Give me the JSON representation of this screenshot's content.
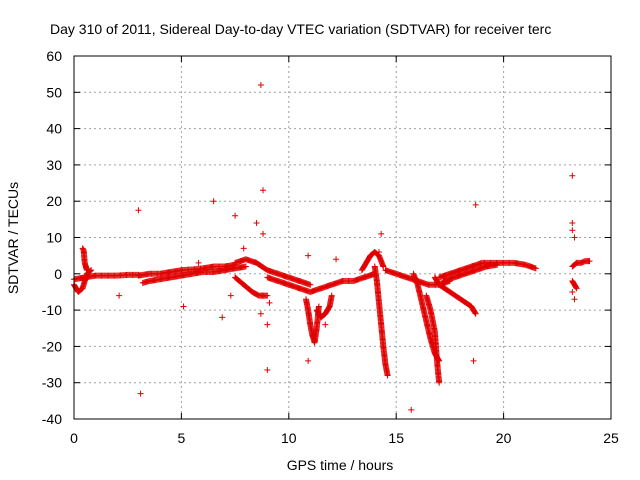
{
  "chart_data": {
    "type": "scatter",
    "title": "Day 310 of 2011, Sidereal Day-to-day VTEC variation (SDTVAR) for receiver terc",
    "xlabel": "GPS time / hours",
    "ylabel": "SDTVAR / TECUs",
    "xlim": [
      0,
      25
    ],
    "ylim": [
      -40,
      60
    ],
    "xticks": [
      0,
      5,
      10,
      15,
      20,
      25
    ],
    "yticks": [
      -40,
      -30,
      -20,
      -10,
      0,
      10,
      20,
      30,
      40,
      50,
      60
    ],
    "grid": true,
    "marker": "+",
    "color": "#e00000",
    "series": [
      {
        "name": "SDTVAR",
        "segments": [
          {
            "x": [
              0.0,
              0.5,
              1.0,
              1.5,
              2.0,
              2.5,
              3.0
            ],
            "y": [
              -1.5,
              -1.0,
              -0.5,
              -0.5,
              -0.5,
              -0.3,
              -0.3
            ]
          },
          {
            "x": [
              0.0,
              0.2,
              0.4,
              0.5,
              0.6,
              0.8
            ],
            "y": [
              -3,
              -5,
              -4,
              -2,
              0,
              1
            ]
          },
          {
            "x": [
              0.4,
              0.45,
              0.5,
              0.55,
              0.6
            ],
            "y": [
              7,
              6.5,
              3,
              2,
              1
            ]
          },
          {
            "x": [
              3.0,
              3.5,
              4.0,
              4.5,
              5.0,
              5.5,
              6.0,
              6.5,
              7.0,
              7.5
            ],
            "y": [
              -0.5,
              0.0,
              0.0,
              0.5,
              1.0,
              1.2,
              1.5,
              2.0,
              2.0,
              2.5
            ]
          },
          {
            "x": [
              3.2,
              3.5,
              4.0,
              4.5,
              5.0,
              5.5,
              6.0,
              6.5,
              7.0,
              7.5,
              8.0
            ],
            "y": [
              -2.5,
              -2.0,
              -1.5,
              -1.0,
              -0.5,
              0.0,
              0.5,
              0.5,
              1.0,
              1.5,
              2.0
            ]
          },
          {
            "x": [
              7.5,
              8.0,
              8.5,
              9.0,
              9.5,
              10.0,
              10.5,
              11.0
            ],
            "y": [
              3,
              4,
              3,
              1,
              0,
              -1,
              -2,
              -3
            ]
          },
          {
            "x": [
              7.5,
              7.7,
              7.9,
              8.1,
              8.3,
              8.6,
              9.0
            ],
            "y": [
              -1,
              -2,
              -3,
              -4,
              -5,
              -6,
              -6
            ]
          },
          {
            "x": [
              9.0,
              9.5,
              10.0,
              10.5,
              11.0,
              11.5,
              12.0,
              12.5,
              13.0,
              13.5,
              14.0
            ],
            "y": [
              -1,
              -2,
              -3,
              -4,
              -5,
              -4,
              -3,
              -2,
              -2,
              -1,
              0
            ]
          },
          {
            "x": [
              10.8,
              10.9,
              11.0,
              11.1,
              11.2,
              11.3,
              11.4
            ],
            "y": [
              -7,
              -10,
              -14,
              -17,
              -19,
              -15,
              -9
            ]
          },
          {
            "x": [
              11.3,
              11.5,
              11.7,
              11.9,
              12.0
            ],
            "y": [
              -10,
              -12,
              -11,
              -9,
              -6
            ]
          },
          {
            "x": [
              14.0,
              14.1,
              14.2,
              14.3,
              14.4,
              14.5,
              14.6
            ],
            "y": [
              2,
              -2,
              -8,
              -14,
              -20,
              -25,
              -28
            ]
          },
          {
            "x": [
              13.4,
              13.6,
              13.8,
              14.0,
              14.2,
              14.4
            ],
            "y": [
              1,
              3,
              5,
              6,
              5,
              2
            ]
          },
          {
            "x": [
              14.5,
              15.0,
              15.5,
              16.0,
              16.5,
              17.0,
              17.5
            ],
            "y": [
              1,
              0,
              -1,
              -2,
              -3,
              -3,
              -2
            ]
          },
          {
            "x": [
              15.8,
              16.0,
              16.2,
              16.4,
              16.6,
              16.8,
              17.0
            ],
            "y": [
              0,
              -3,
              -8,
              -13,
              -18,
              -22,
              -24
            ]
          },
          {
            "x": [
              16.4,
              16.6,
              16.8,
              16.9,
              17.0
            ],
            "y": [
              -6,
              -10,
              -16,
              -24,
              -30
            ]
          },
          {
            "x": [
              16.8,
              17.0,
              17.5,
              18.0,
              18.5,
              18.7
            ],
            "y": [
              -1,
              -3,
              -5,
              -7,
              -9,
              -11
            ]
          },
          {
            "x": [
              17.0,
              17.5,
              18.0,
              18.5,
              19.0,
              19.5,
              20.0,
              20.5,
              21.0,
              21.5
            ],
            "y": [
              -1,
              0,
              1,
              2,
              3,
              3,
              3,
              3,
              2.5,
              1.5
            ]
          },
          {
            "x": [
              17.2,
              17.7,
              18.2,
              18.7,
              19.2,
              19.7
            ],
            "y": [
              -2,
              -1,
              0,
              1,
              2,
              2.5
            ]
          },
          {
            "x": [
              23.2,
              23.4,
              23.6,
              23.8,
              24.0
            ],
            "y": [
              2,
              3,
              3,
              3.5,
              3.5
            ]
          },
          {
            "x": [
              23.2,
              23.3,
              23.4
            ],
            "y": [
              -2,
              -3,
              -4
            ]
          }
        ],
        "outliers": {
          "x": [
            8.7,
            8.8,
            8.8,
            3.1,
            6.5,
            7.5,
            8.5,
            8.7,
            9.0,
            9.0,
            8.8,
            9.1,
            10.9,
            14.3,
            15.7,
            18.7,
            18.6,
            23.2,
            23.2,
            23.3,
            23.2,
            23.3,
            23.2,
            5.1,
            6.9,
            7.3,
            3.0,
            2.1,
            12.2,
            11.7,
            10.9,
            7.9,
            5.8,
            14.2
          ],
          "y": [
            52,
            23,
            11,
            -33,
            20,
            16,
            14,
            -11,
            -14,
            -26.5,
            -6,
            -8,
            -24,
            11,
            -37.5,
            19,
            -24,
            27,
            14,
            10,
            12,
            -7,
            -5,
            -9,
            -12,
            -6,
            17.5,
            -6,
            4,
            -14,
            5,
            7,
            3,
            6
          ]
        }
      }
    ]
  }
}
